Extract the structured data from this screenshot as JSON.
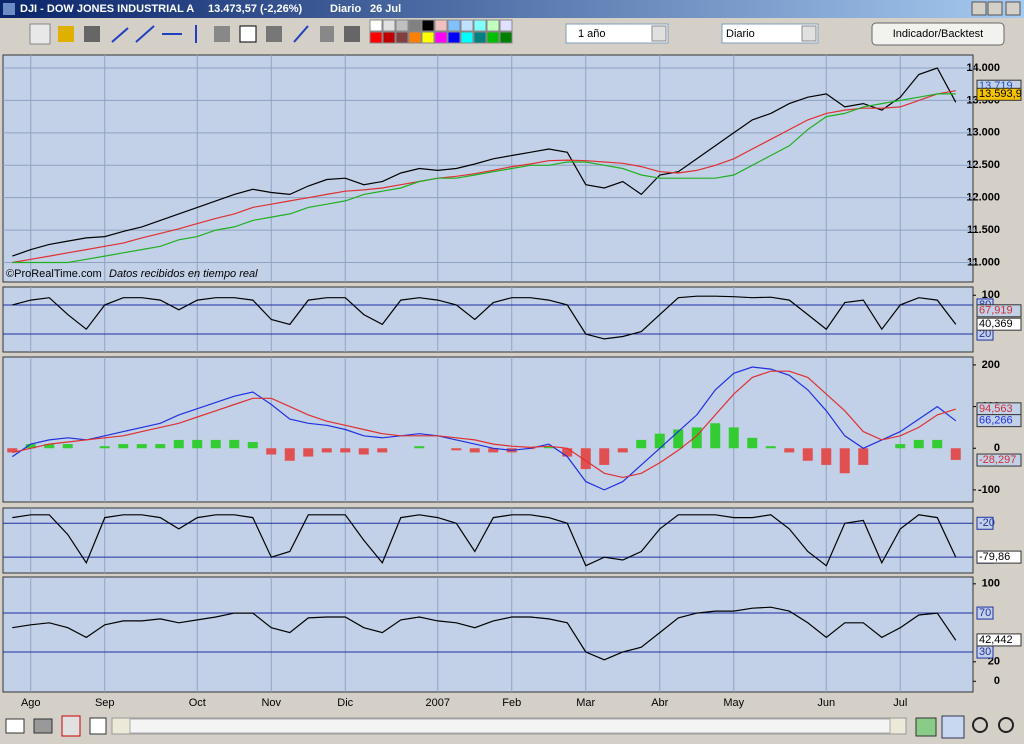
{
  "window": {
    "symbol": "DJI - DOW JONES INDUSTRIAL A",
    "quote": "13.473,57 (-2,26%)",
    "interval": "Diario",
    "date": "26 Jul"
  },
  "toolbar": {
    "period": "1 año",
    "interval": "Diario",
    "button": "Indicador/Backtest"
  },
  "chart_data": [
    {
      "type": "line",
      "ylim": [
        10700,
        14200
      ],
      "grid": true,
      "yticks": [
        {
          "value": 11000,
          "label": "11.000"
        },
        {
          "value": 11500,
          "label": "11.500"
        },
        {
          "value": 12000,
          "label": "12.000"
        },
        {
          "value": 12500,
          "label": "12.500"
        },
        {
          "value": 13000,
          "label": "13.000"
        },
        {
          "value": 13500,
          "label": "13.500"
        },
        {
          "value": 14000,
          "label": "14.000"
        }
      ],
      "series": [
        {
          "color": "#000000",
          "values": [
            11100,
            11200,
            11280,
            11330,
            11380,
            11400,
            11480,
            11550,
            11650,
            11750,
            11850,
            11950,
            12050,
            12130,
            12080,
            12050,
            12180,
            12280,
            12300,
            12200,
            12250,
            12380,
            12450,
            12420,
            12450,
            12520,
            12600,
            12650,
            12700,
            12750,
            12700,
            12200,
            12150,
            12250,
            12050,
            12350,
            12400,
            12600,
            12800,
            13000,
            13200,
            13300,
            13450,
            13550,
            13600,
            13400,
            13450,
            13350,
            13550,
            13900,
            14000,
            13470
          ]
        },
        {
          "color": "#e03030",
          "values": [
            11000,
            11050,
            11100,
            11150,
            11200,
            11250,
            11300,
            11380,
            11450,
            11520,
            11600,
            11680,
            11750,
            11850,
            11900,
            11950,
            12000,
            12050,
            12100,
            12120,
            12150,
            12200,
            12250,
            12300,
            12330,
            12370,
            12420,
            12480,
            12520,
            12570,
            12580,
            12570,
            12550,
            12530,
            12480,
            12400,
            12380,
            12420,
            12500,
            12600,
            12750,
            12900,
            13050,
            13200,
            13300,
            13350,
            13380,
            13380,
            13400,
            13500,
            13600,
            13650
          ]
        },
        {
          "color": "#20b020",
          "values": [
            11000,
            11000,
            11000,
            11000,
            11050,
            11100,
            11150,
            11200,
            11250,
            11350,
            11400,
            11500,
            11550,
            11650,
            11700,
            11750,
            11850,
            11900,
            11950,
            12050,
            12100,
            12150,
            12250,
            12300,
            12300,
            12350,
            12400,
            12450,
            12500,
            12500,
            12550,
            12550,
            12500,
            12450,
            12350,
            12300,
            12300,
            12300,
            12300,
            12350,
            12500,
            12650,
            12800,
            13050,
            13250,
            13300,
            13400,
            13450,
            13500,
            13550,
            13600,
            13600
          ]
        }
      ],
      "value_tags": [
        {
          "value": 13719,
          "label": "13.719",
          "color": "#2050c0",
          "background": "#c2d1e8"
        },
        {
          "value": 13593.9,
          "label": "13.593,9",
          "color": "#000000",
          "background": "#f5c400"
        }
      ],
      "watermark": "©ProRealTime.com",
      "note": "Datos recibidos en tiempo real"
    },
    {
      "type": "line",
      "ylim": [
        -17,
        117
      ],
      "yticks": [
        100
      ],
      "levels": [
        80,
        20
      ],
      "series": [
        {
          "color": "#000000",
          "values": [
            80,
            90,
            95,
            60,
            30,
            80,
            95,
            95,
            90,
            70,
            90,
            95,
            95,
            90,
            50,
            40,
            90,
            95,
            95,
            60,
            40,
            90,
            95,
            90,
            80,
            50,
            85,
            95,
            95,
            90,
            80,
            20,
            10,
            15,
            25,
            60,
            95,
            98,
            98,
            97,
            95,
            96,
            90,
            60,
            30,
            85,
            90,
            30,
            80,
            95,
            90,
            40
          ]
        }
      ],
      "value_tags": [
        {
          "value": 67.919,
          "label": "67,919",
          "color": "#d03030",
          "background": "#c2d1e8"
        },
        {
          "value": 40.369,
          "label": "40,369",
          "color": "#000000",
          "background": "#ffffff"
        }
      ]
    },
    {
      "type": "line",
      "ylim": [
        -129,
        219
      ],
      "yticks": [
        -100,
        0,
        100,
        200
      ],
      "histogram": {
        "positive_color": "#33cc33",
        "negative_color": "#e05050",
        "values": [
          -10,
          10,
          10,
          10,
          0,
          5,
          10,
          10,
          10,
          20,
          20,
          20,
          20,
          15,
          -15,
          -30,
          -20,
          -10,
          -10,
          -15,
          -10,
          0,
          5,
          0,
          -5,
          -10,
          -10,
          -10,
          -2,
          5,
          -20,
          -50,
          -40,
          -10,
          20,
          35,
          45,
          50,
          60,
          50,
          25,
          5,
          -10,
          -30,
          -40,
          -60,
          -40,
          0,
          10,
          20,
          20,
          -28
        ]
      },
      "series": [
        {
          "color": "#2030e0",
          "values": [
            -20,
            10,
            20,
            25,
            20,
            30,
            40,
            50,
            60,
            80,
            95,
            110,
            125,
            135,
            105,
            70,
            60,
            55,
            45,
            30,
            25,
            30,
            35,
            30,
            20,
            10,
            0,
            -5,
            0,
            10,
            -20,
            -80,
            -100,
            -80,
            -40,
            0,
            40,
            80,
            140,
            180,
            195,
            190,
            175,
            140,
            90,
            30,
            0,
            20,
            40,
            70,
            100,
            66
          ]
        },
        {
          "color": "#e03030",
          "values": [
            -10,
            0,
            10,
            15,
            20,
            25,
            30,
            40,
            50,
            60,
            75,
            90,
            105,
            120,
            120,
            100,
            80,
            65,
            55,
            45,
            35,
            30,
            30,
            30,
            25,
            20,
            10,
            5,
            2,
            5,
            0,
            -30,
            -60,
            -70,
            -60,
            -35,
            -5,
            30,
            80,
            130,
            170,
            185,
            185,
            170,
            130,
            90,
            40,
            20,
            30,
            50,
            80,
            94
          ]
        }
      ],
      "value_tags": [
        {
          "value": 94.563,
          "label": "94,563",
          "color": "#d03030",
          "background": "#c2d1e8"
        },
        {
          "value": 66.266,
          "label": "66,266",
          "color": "#2030e0",
          "background": "#c2d1e8"
        },
        {
          "value": -28.297,
          "label": "-28,297",
          "color": "#d03030",
          "background": "#c2d1e8"
        }
      ]
    },
    {
      "type": "line",
      "ylim": [
        -108,
        7
      ],
      "levels": [
        -20,
        -80
      ],
      "series": [
        {
          "color": "#000000",
          "values": [
            -10,
            -5,
            -5,
            -40,
            -90,
            -10,
            -5,
            -5,
            -10,
            -30,
            -10,
            -5,
            -5,
            -10,
            -80,
            -70,
            -5,
            -5,
            -5,
            -50,
            -90,
            -10,
            -5,
            -10,
            -20,
            -70,
            -10,
            -5,
            -5,
            -10,
            -20,
            -95,
            -80,
            -85,
            -70,
            -30,
            -5,
            -5,
            -5,
            -10,
            -10,
            -5,
            -30,
            -70,
            -95,
            -20,
            -15,
            -90,
            -30,
            -5,
            -10,
            -80
          ]
        }
      ],
      "value_tags": [
        {
          "value": -79.86,
          "label": "-79,86",
          "color": "#000000",
          "background": "#ffffff"
        }
      ]
    },
    {
      "type": "line",
      "ylim": [
        -11,
        107
      ],
      "yticks": [
        0,
        20,
        100
      ],
      "levels": [
        70,
        30
      ],
      "categories": [
        null,
        "Ago",
        null,
        null,
        null,
        "Sep",
        null,
        null,
        null,
        null,
        "Oct",
        null,
        null,
        null,
        "Nov",
        null,
        null,
        null,
        "Dic",
        null,
        null,
        null,
        null,
        "2007",
        null,
        null,
        null,
        "Feb",
        null,
        null,
        null,
        "Mar",
        null,
        null,
        null,
        "Abr",
        null,
        null,
        null,
        "May",
        null,
        null,
        null,
        null,
        "Jun",
        null,
        null,
        null,
        "Jul",
        null,
        null,
        null
      ],
      "series": [
        {
          "color": "#000000",
          "values": [
            55,
            58,
            60,
            55,
            45,
            58,
            62,
            62,
            64,
            60,
            63,
            66,
            70,
            70,
            55,
            50,
            65,
            66,
            66,
            55,
            50,
            63,
            66,
            62,
            60,
            55,
            62,
            66,
            66,
            64,
            60,
            30,
            22,
            30,
            35,
            50,
            65,
            70,
            72,
            72,
            75,
            76,
            72,
            60,
            45,
            60,
            60,
            45,
            55,
            68,
            70,
            42
          ]
        }
      ],
      "value_tags": [
        {
          "value": 42.442,
          "label": "42,442",
          "color": "#000000",
          "background": "#ffffff"
        }
      ]
    }
  ]
}
